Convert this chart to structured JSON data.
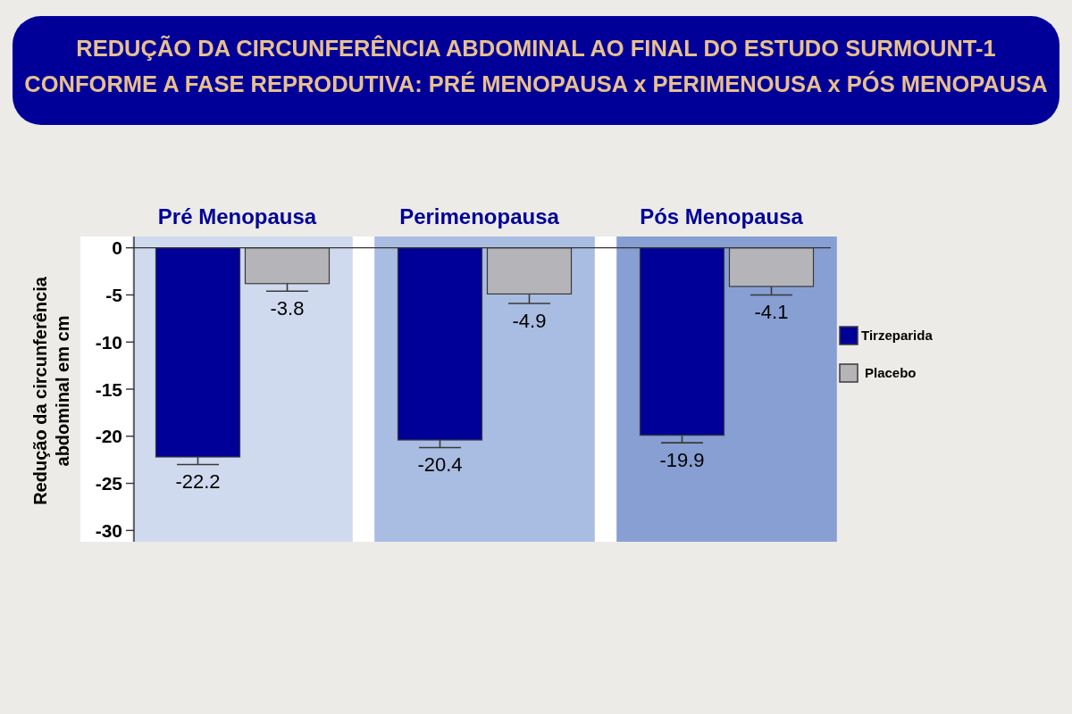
{
  "chart_data": {
    "type": "bar",
    "title": "REDUÇÃO DA CIRCUNFERÊNCIA ABDOMINAL AO FINAL DO ESTUDO SURMOUNT-1 CONFORME A FASE REPRODUTIVA: PRÉ MENOPAUSA x PERIMENOUSA x PÓS MENOPAUSA",
    "ylabel": "Redução da circunferência abdominal em cm",
    "categories": [
      "Pré Menopausa",
      "Perimenopausa",
      "Pós Menopausa"
    ],
    "series": [
      {
        "name": "Tirzeparida",
        "color": "#000099",
        "values": [
          -22.2,
          -20.4,
          -19.9
        ],
        "errors": [
          [
            -23.0,
            -22.2
          ],
          [
            -21.2,
            -20.4
          ],
          [
            -20.7,
            -19.9
          ]
        ]
      },
      {
        "name": "Placebo",
        "color": "#b5b5b9",
        "values": [
          -3.8,
          -4.9,
          -4.1
        ],
        "errors": [
          [
            -4.6,
            -3.8
          ],
          [
            -5.9,
            -4.9
          ],
          [
            -5.0,
            -4.1
          ]
        ]
      }
    ],
    "ylim": [
      -31.2,
      1.2
    ],
    "yticks": [
      0,
      -5,
      -10,
      -15,
      -20,
      -25,
      -30
    ],
    "bands": [
      {
        "axis": "x",
        "from": "Pré Menopausa",
        "to": "Pré Menopausa",
        "color": "#d0daef"
      },
      {
        "axis": "x",
        "from": "Perimenopausa",
        "to": "Perimenopausa",
        "color": "#a9bce2"
      },
      {
        "axis": "x",
        "from": "Pós Menopausa",
        "to": "Pós Menopausa",
        "color": "#879fd3"
      }
    ],
    "legend": "right",
    "data_labels": true
  }
}
